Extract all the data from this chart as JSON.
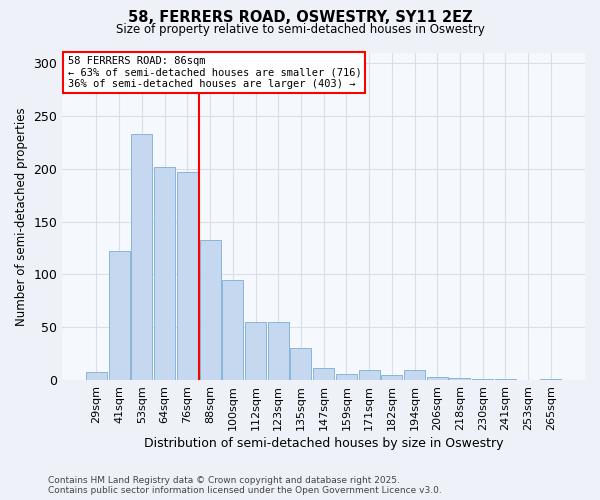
{
  "title_line1": "58, FERRERS ROAD, OSWESTRY, SY11 2EZ",
  "title_line2": "Size of property relative to semi-detached houses in Oswestry",
  "xlabel": "Distribution of semi-detached houses by size in Oswestry",
  "ylabel": "Number of semi-detached properties",
  "categories": [
    "29sqm",
    "41sqm",
    "53sqm",
    "64sqm",
    "76sqm",
    "88sqm",
    "100sqm",
    "112sqm",
    "123sqm",
    "135sqm",
    "147sqm",
    "159sqm",
    "171sqm",
    "182sqm",
    "194sqm",
    "206sqm",
    "218sqm",
    "230sqm",
    "241sqm",
    "253sqm",
    "265sqm"
  ],
  "values": [
    8,
    122,
    233,
    202,
    197,
    133,
    95,
    55,
    55,
    30,
    12,
    6,
    10,
    5,
    10,
    3,
    2,
    1,
    1,
    0,
    1
  ],
  "bar_color": "#c5d8ef",
  "bar_edge_color": "#7aaed4",
  "vline_color": "red",
  "vline_index": 4.5,
  "annotation_title": "58 FERRERS ROAD: 86sqm",
  "annotation_line1": "← 63% of semi-detached houses are smaller (716)",
  "annotation_line2": "36% of semi-detached houses are larger (403) →",
  "annotation_box_color": "white",
  "annotation_box_edge": "red",
  "ylim": [
    0,
    310
  ],
  "yticks": [
    0,
    50,
    100,
    150,
    200,
    250,
    300
  ],
  "footer_line1": "Contains HM Land Registry data © Crown copyright and database right 2025.",
  "footer_line2": "Contains public sector information licensed under the Open Government Licence v3.0.",
  "bg_color": "#eef2f8",
  "plot_bg_color": "#f5f8fd",
  "grid_color": "#d8dfe8"
}
